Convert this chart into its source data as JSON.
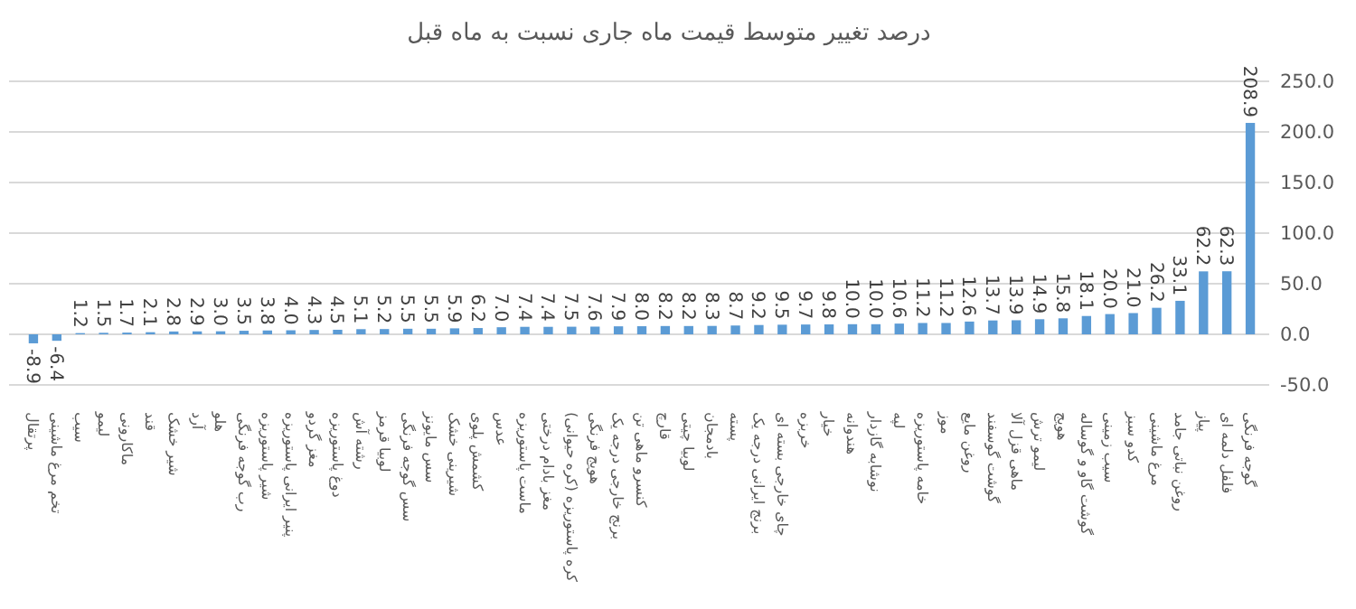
{
  "chart_data": {
    "type": "bar",
    "title": "درصد تغییر متوسط قیمت ماه جاری نسبت به ماه قبل",
    "categories": [
      "پرتقال",
      "تخم مرغ ماشینی",
      "سیب",
      "لیمو",
      "ماکارونی",
      "قند",
      "شیر خشک",
      "آرد",
      "هلو",
      "رب گوجه فرنگی",
      "شیر پاستوریزه",
      "پنیر ایرانی پاستوریزه",
      "مغز گردو",
      "دوغ پاستوریزه",
      "رشته آش",
      "لوبیا قرمز",
      "سس گوجه فرنگی",
      "سس مایونز",
      "شیرینی خشک",
      "کشمش پلوی",
      "عدس",
      "ماست پاستوریزه",
      "مغز بادام درختی",
      "کره پاستوریزه (کره حیوانی)",
      "هویج فرنگی",
      "برنج خارجی درجه یک",
      "کنسرو ماهی تن",
      "قارچ",
      "لوبیا چیتی",
      "بادمجان",
      "پسته",
      "برنج ایرانی درجه یک",
      "چای خارجی بسته ای",
      "خربزه",
      "خیار",
      "هندوانه",
      "نوشابه گازدار",
      "لپه",
      "خامه پاستوریزه",
      "موز",
      "روغن مایع",
      "گوشت گوسفند",
      "ماهی قزل آلا",
      "لیمو ترش",
      "هویج",
      "گوشت گاو و گوساله",
      "سیب زمینی",
      "کدو سبز",
      "مرغ ماشینی",
      "روغن نباتی جامد",
      "پیاز",
      "فلفل دلمه ای",
      "گوجه فرنگی"
    ],
    "values": [
      -8.9,
      -6.4,
      1.2,
      1.5,
      1.7,
      2.1,
      2.8,
      2.9,
      3.0,
      3.5,
      3.8,
      4.0,
      4.3,
      4.5,
      5.1,
      5.2,
      5.5,
      5.5,
      5.9,
      6.2,
      7.0,
      7.4,
      7.4,
      7.5,
      7.6,
      7.9,
      8.0,
      8.2,
      8.2,
      8.3,
      8.7,
      9.2,
      9.5,
      9.7,
      9.8,
      10.0,
      10.0,
      10.6,
      11.2,
      11.2,
      12.6,
      13.7,
      13.9,
      14.9,
      15.8,
      18.1,
      20.0,
      21.0,
      26.2,
      33.1,
      62.2,
      62.3,
      208.9
    ],
    "value_labels": [
      "-8.9",
      "-6.4",
      "1.2",
      "1.5",
      "1.7",
      "2.1",
      "2.8",
      "2.9",
      "3.0",
      "3.5",
      "3.8",
      "4.0",
      "4.3",
      "4.5",
      "5.1",
      "5.2",
      "5.5",
      "5.5",
      "5.9",
      "6.2",
      "7.0",
      "7.4",
      "7.4",
      "7.5",
      "7.6",
      "7.9",
      "8.0",
      "8.2",
      "8.2",
      "8.3",
      "8.7",
      "9.2",
      "9.5",
      "9.7",
      "9.8",
      "10.0",
      "10.0",
      "10.6",
      "11.2",
      "11.2",
      "12.6",
      "13.7",
      "13.9",
      "14.9",
      "15.8",
      "18.1",
      "20.0",
      "21.0",
      "26.2",
      "33.1",
      "62.2",
      "62.3",
      "208.9"
    ],
    "color": "#5b9bd5",
    "ylim": [
      -50,
      250
    ],
    "yticks": [
      {
        "value": -50,
        "label": "-50.0"
      },
      {
        "value": 0,
        "label": "0.0"
      },
      {
        "value": 50,
        "label": "50.0"
      },
      {
        "value": 100,
        "label": "100.0"
      },
      {
        "value": 150,
        "label": "150.0"
      },
      {
        "value": 200,
        "label": "200.0"
      },
      {
        "value": 250,
        "label": "250.0"
      }
    ],
    "grid": true
  }
}
